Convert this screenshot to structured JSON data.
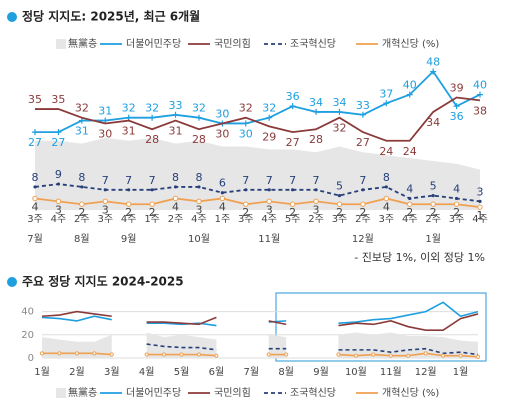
{
  "chart_data": [
    {
      "type": "line",
      "title": "정당 지지도: 2025년, 최근 6개월",
      "categories": [
        "3주",
        "4주",
        "2주",
        "3주",
        "4주",
        "1주",
        "2주",
        "4주",
        "1주",
        "3주",
        "4주",
        "5주",
        "2주",
        "3주",
        "2주",
        "3주",
        "4주",
        "2주",
        "3주",
        "4주"
      ],
      "months": [
        "7월",
        null,
        "8월",
        null,
        "9월",
        null,
        null,
        "10월",
        null,
        null,
        "11월",
        null,
        null,
        null,
        "12월",
        null,
        null,
        "1월",
        null,
        null
      ],
      "ylim": [
        0,
        52
      ],
      "note": "- 진보당 1%, 이외 정당 1%",
      "series": [
        {
          "name": "無黨층",
          "color": "#e6e6e6",
          "area": true,
          "values": [
            24,
            24,
            23,
            25,
            24,
            25,
            23,
            24,
            22,
            22,
            21,
            21,
            20,
            22,
            20,
            19,
            18,
            17,
            16,
            14
          ]
        },
        {
          "name": "더불어민주당",
          "color": "#1e9fe0",
          "marker": "plus",
          "values": [
            27,
            27,
            31,
            31,
            32,
            32,
            33,
            32,
            30,
            30,
            32,
            36,
            34,
            34,
            33,
            37,
            40,
            48,
            36,
            40
          ]
        },
        {
          "name": "국민의힘",
          "color": "#8b3a3a",
          "values": [
            35,
            35,
            32,
            30,
            31,
            28,
            31,
            28,
            30,
            32,
            29,
            27,
            28,
            32,
            27,
            24,
            24,
            34,
            39,
            38
          ]
        },
        {
          "name": "조국혁신당",
          "color": "#27407a",
          "dash": true,
          "marker": "dot",
          "values": [
            8,
            9,
            8,
            7,
            7,
            7,
            8,
            8,
            6,
            7,
            7,
            7,
            7,
            5,
            7,
            8,
            4,
            5,
            4,
            3
          ]
        },
        {
          "name": "개혁신당 (%)",
          "color": "#f0a050",
          "marker": "circle",
          "values": [
            4,
            3,
            2,
            3,
            2,
            2,
            4,
            3,
            4,
            2,
            3,
            2,
            3,
            2,
            2,
            4,
            2,
            2,
            2,
            1
          ]
        }
      ]
    },
    {
      "type": "line",
      "title": "주요 정당 지지도 2024-2025",
      "categories": [
        "1월",
        null,
        "2월",
        null,
        "3월",
        null,
        "4월",
        null,
        "5월",
        null,
        "6월",
        null,
        "7월",
        null,
        "8월",
        null,
        "9월",
        null,
        "10월",
        null,
        "11월",
        null,
        "12월",
        null,
        "1월",
        null
      ],
      "ylim": [
        0,
        50
      ],
      "yticks": [
        0,
        20,
        40
      ],
      "grid": true,
      "series": [
        {
          "name": "無黨층",
          "color": "#e6e6e6",
          "area": true,
          "values": [
            18,
            16,
            14,
            14,
            20,
            null,
            22,
            18,
            20,
            18,
            16,
            null,
            null,
            20,
            18,
            null,
            null,
            20,
            22,
            20,
            22,
            19,
            19,
            18,
            15,
            14
          ]
        },
        {
          "name": "더불어민주당",
          "color": "#1e9fe0",
          "values": [
            35,
            34,
            32,
            36,
            33,
            null,
            30,
            30,
            29,
            30,
            28,
            null,
            null,
            31,
            32,
            null,
            null,
            30,
            31,
            33,
            34,
            37,
            40,
            48,
            36,
            40
          ]
        },
        {
          "name": "국민의힘",
          "color": "#8b3a3a",
          "values": [
            36,
            37,
            40,
            38,
            36,
            null,
            31,
            31,
            30,
            29,
            35,
            null,
            null,
            32,
            29,
            null,
            null,
            28,
            30,
            29,
            32,
            27,
            24,
            24,
            34,
            38
          ]
        },
        {
          "name": "조국혁신당",
          "color": "#27407a",
          "dash": true,
          "values": [
            null,
            null,
            null,
            null,
            8,
            null,
            12,
            10,
            9,
            9,
            7,
            null,
            null,
            8,
            8,
            null,
            null,
            7,
            7,
            7,
            5,
            7,
            8,
            4,
            5,
            3
          ]
        },
        {
          "name": "개혁신당 (%)",
          "color": "#f0a050",
          "marker": "circle",
          "values": [
            4,
            4,
            4,
            4,
            3,
            null,
            3,
            3,
            3,
            3,
            2,
            null,
            null,
            3,
            3,
            null,
            null,
            3,
            2,
            3,
            2,
            2,
            4,
            2,
            2,
            1
          ]
        }
      ]
    }
  ]
}
